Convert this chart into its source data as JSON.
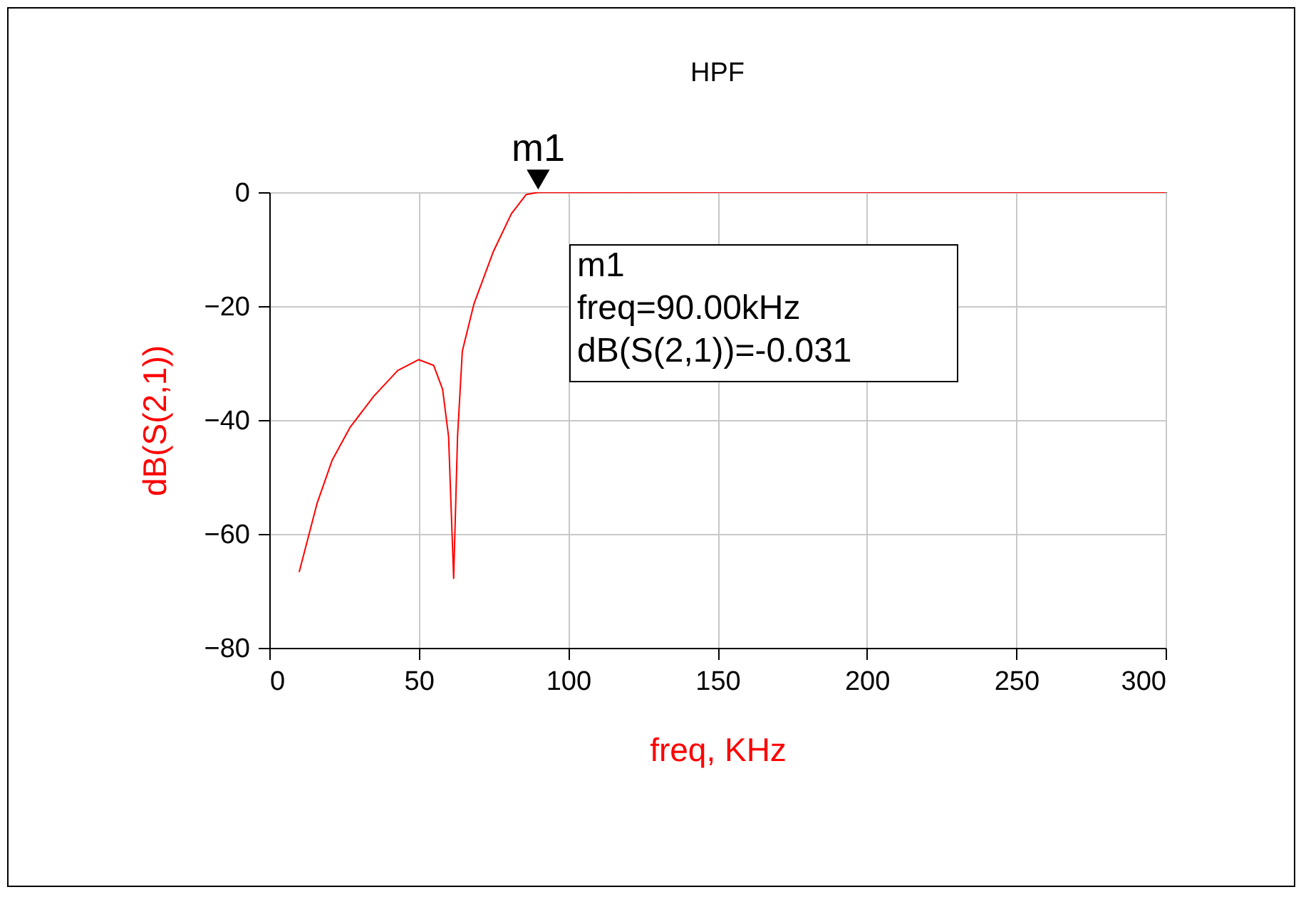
{
  "chart_data": {
    "type": "line",
    "title": "HPF",
    "xlabel": "freq, KHz",
    "ylabel": "dB(S(2,1))",
    "x": [
      10,
      16,
      21,
      27,
      35,
      43,
      50,
      55,
      58,
      60,
      61.7,
      63,
      64.6,
      68.5,
      75,
      81,
      86,
      90,
      150,
      200,
      250,
      300
    ],
    "series": [
      {
        "color": "#ff0000",
        "values": [
          -66.7,
          -54.6,
          -47.1,
          -41.3,
          -35.8,
          -31.3,
          -29.4,
          -30.4,
          -34.6,
          -42.9,
          -67.8,
          -42.9,
          -27.9,
          -19.6,
          -10.4,
          -3.8,
          -0.4,
          -0.031,
          0,
          0,
          0,
          0
        ]
      }
    ],
    "xlim": [
      0,
      300
    ],
    "xticks": [
      0,
      50,
      100,
      150,
      200,
      250,
      300
    ],
    "ylim": [
      -80,
      0
    ],
    "yticks": [
      -80,
      -60,
      -40,
      -20,
      0
    ],
    "grid": true,
    "annotations": [
      {
        "text": "m1",
        "x": 90,
        "y": -0.031
      },
      "m1\nfreq=90.00kHz\ndB(S(2,1))=-0.031"
    ]
  }
}
